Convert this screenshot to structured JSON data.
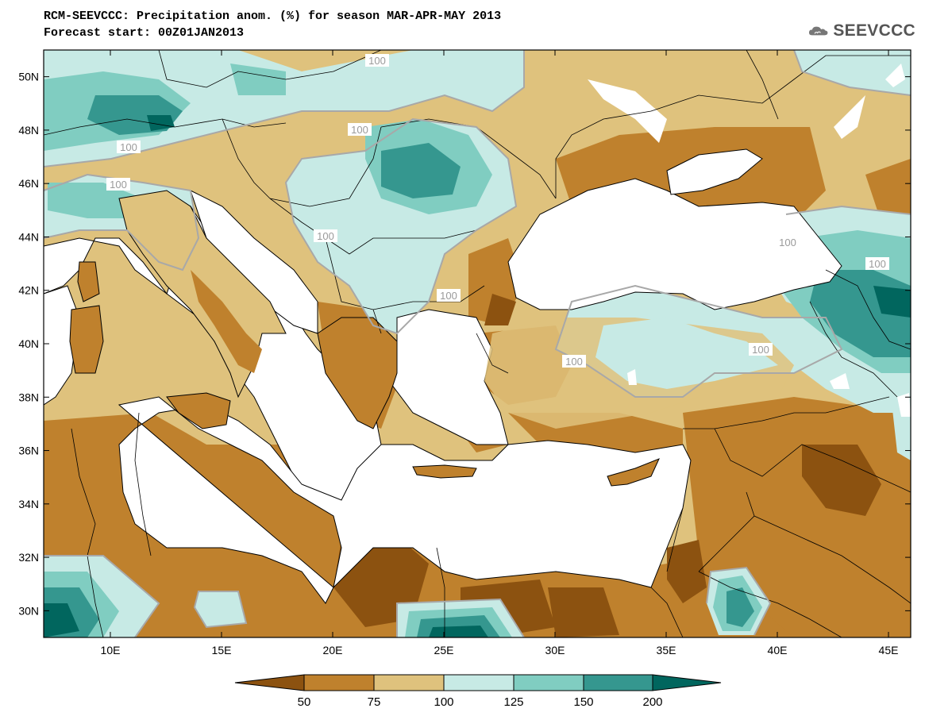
{
  "header": {
    "title": "RCM-SEEVCCC: Precipitation anom. (%) for season MAR-APR-MAY 2013",
    "subtitle": "Forecast start: 00Z01JAN2013"
  },
  "logo": {
    "text": "SEEVCCC",
    "icon": "cloud-icon"
  },
  "map": {
    "lat_labels": [
      "50N",
      "48N",
      "46N",
      "44N",
      "42N",
      "40N",
      "38N",
      "36N",
      "34N",
      "32N",
      "30N"
    ],
    "lon_labels": [
      "10E",
      "15E",
      "20E",
      "25E",
      "30E",
      "35E",
      "40E",
      "45E"
    ],
    "contour_labels": [
      "100",
      "100",
      "100",
      "100",
      "100",
      "100",
      "100",
      "100",
      "100",
      "100"
    ],
    "lat_range": [
      29,
      51
    ],
    "lon_range": [
      7,
      46
    ]
  },
  "colors": {
    "lt50": "#8c5210",
    "50_75": "#bf812d",
    "75_100": "#dfc27d",
    "100_125": "#c7eae5",
    "125_150": "#80cdc1",
    "150_200": "#35978f",
    "gt200": "#01665e",
    "sea": "#ffffff",
    "contour": "#a8a8a8"
  },
  "colorbar": {
    "labels": [
      "50",
      "75",
      "100",
      "125",
      "150",
      "200"
    ]
  }
}
